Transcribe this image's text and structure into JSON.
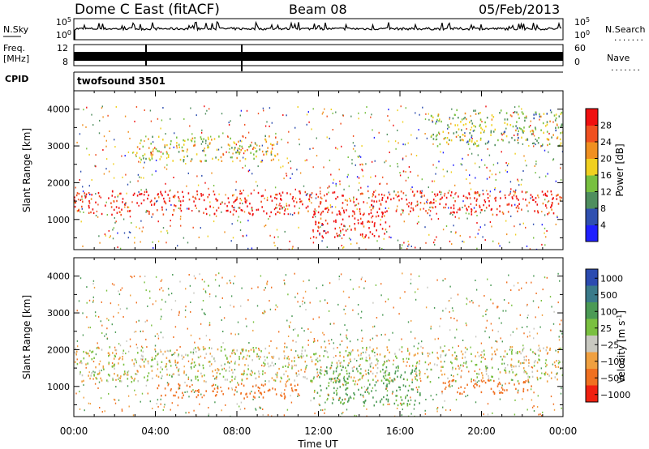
{
  "header": {
    "station": "Dome C East (fitACF)",
    "beam": "Beam 08",
    "date": "05/Feb/2013"
  },
  "strips": {
    "nsky_label": "N.Sky",
    "nsearch_label": "N.Search",
    "freq_label_line1": "Freq.",
    "freq_label_line2": "[MHz]",
    "nave_label": "Nave",
    "cpid_label": "CPID",
    "cpid_value": "twofsound 3501",
    "dots_label": "......."
  },
  "chart_data": [
    {
      "type": "line",
      "name": "noise-strip",
      "left_ticks": [
        "10^5",
        "10^0"
      ],
      "right_ticks": [
        "10^5",
        "10^0"
      ],
      "scale": "log",
      "ylim": [
        1,
        100000
      ],
      "typical_value": 1000
    },
    {
      "type": "line",
      "name": "freq-nave-strip",
      "left_ticks": [
        "12",
        "8"
      ],
      "right_ticks": [
        "60",
        "0"
      ],
      "freq_ylim": [
        8,
        12
      ],
      "nave_ylim": [
        0,
        60
      ]
    },
    {
      "type": "heatmap",
      "name": "power-panel",
      "ylabel": "Slant Range [km]",
      "yticks": [
        1000,
        2000,
        3000,
        4000
      ],
      "ylim": [
        180,
        4500
      ],
      "x_hours": [
        0,
        24
      ],
      "colorbar": {
        "label": "Power [dB]",
        "ticks": [
          "4",
          "8",
          "12",
          "16",
          "20",
          "24",
          "28"
        ],
        "colors": [
          "#2020ff",
          "#3050b0",
          "#4f8e5e",
          "#78c040",
          "#f0d020",
          "#f09020",
          "#f05020",
          "#f01010"
        ]
      },
      "features": [
        {
          "range_km": [
            1150,
            1800
          ],
          "time_h": [
            0,
            24
          ],
          "dominant_power_db": 28
        },
        {
          "range_km": [
            500,
            1300
          ],
          "time_h": [
            11.7,
            15.3
          ],
          "dominant_power_db": 28
        },
        {
          "range_km": [
            2600,
            3300
          ],
          "time_h": [
            3,
            10
          ],
          "dominant_power_db": 16
        },
        {
          "range_km": [
            3000,
            4000
          ],
          "time_h": [
            17.5,
            24
          ],
          "dominant_power_db": 12
        }
      ]
    },
    {
      "type": "heatmap",
      "name": "velocity-panel",
      "ylabel": "Slant Range [km]",
      "yticks": [
        1000,
        2000,
        3000,
        4000
      ],
      "ylim": [
        180,
        4500
      ],
      "x_hours": [
        0,
        24
      ],
      "xticks": [
        "00:00",
        "04:00",
        "08:00",
        "12:00",
        "16:00",
        "20:00",
        "00:00"
      ],
      "xlabel": "Time UT",
      "colorbar": {
        "label": "Velocity [m s",
        "label_exp": "-1",
        "label_end": "]",
        "ticks": [
          "1000",
          "500",
          "100",
          "25",
          "−25",
          "−100",
          "−500",
          "−1000"
        ],
        "colors": [
          "#2b4bb0",
          "#3a7a8a",
          "#4b9a55",
          "#7ac040",
          "#c8c8c0",
          "#f0a040",
          "#f07020",
          "#f02010"
        ]
      },
      "features": [
        {
          "range_km": [
            1150,
            2100
          ],
          "time_h": [
            0,
            24
          ],
          "velocity": 0
        },
        {
          "range_km": [
            700,
            1100
          ],
          "time_h": [
            4,
            11
          ],
          "velocity": -300
        },
        {
          "range_km": [
            500,
            1600
          ],
          "time_h": [
            11.7,
            17
          ],
          "velocity": 150
        },
        {
          "range_km": [
            800,
            1200
          ],
          "time_h": [
            18,
            22.5
          ],
          "velocity": -400
        }
      ]
    }
  ]
}
